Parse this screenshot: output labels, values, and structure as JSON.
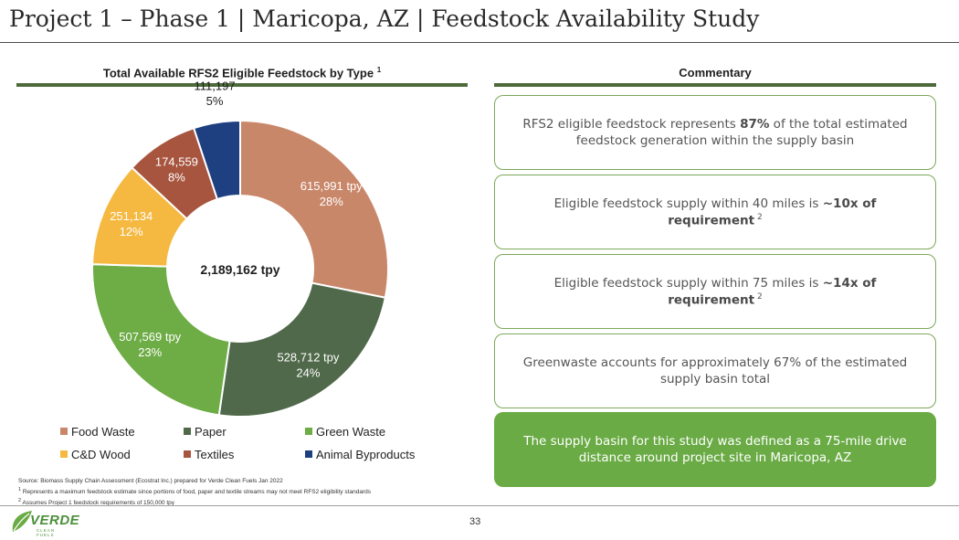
{
  "page": {
    "title": "Project 1 – Phase 1 | Maricopa, AZ | Feedstock Availability Study",
    "page_number": "33"
  },
  "chart_section": {
    "heading": "Total Available RFS2 Eligible Feedstock by Type",
    "heading_sup": "1"
  },
  "commentary": {
    "heading": "Commentary",
    "cards": [
      {
        "pre": "RFS2 eligible feedstock represents ",
        "bold": "87%",
        "post": " of the total estimated feedstock generation within the supply basin",
        "sup": ""
      },
      {
        "pre": "Eligible feedstock supply within 40 miles is ",
        "bold": "~10x of requirement",
        "post": "",
        "sup": "2"
      },
      {
        "pre": "Eligible feedstock supply within 75 miles is ",
        "bold": "~14x of requirement",
        "post": "",
        "sup": "2"
      },
      {
        "pre": "Greenwaste accounts for approximately 67% of the estimated supply basin total",
        "bold": "",
        "post": "",
        "sup": ""
      },
      {
        "pre": "The supply basin for this study was defined as a 75-mile drive distance around project site in Maricopa, AZ",
        "bold": "",
        "post": "",
        "sup": ""
      }
    ]
  },
  "chart_data": {
    "type": "pie",
    "title": "Total Available RFS2 Eligible Feedstock by Type",
    "center_label": "2,189,162 tpy",
    "total": 2189162,
    "series": [
      {
        "name": "Food Waste",
        "value": 615991,
        "label": "615,991 tpy",
        "percent": "28%",
        "color": "#c9876a"
      },
      {
        "name": "Paper",
        "value": 528712,
        "label": "528,712 tpy",
        "percent": "24%",
        "color": "#50694a"
      },
      {
        "name": "Green Waste",
        "value": 507569,
        "label": "507,569 tpy",
        "percent": "23%",
        "color": "#6eac46"
      },
      {
        "name": "C&D Wood",
        "value": 251134,
        "label": "251,134",
        "percent": "12%",
        "color": "#f5b942"
      },
      {
        "name": "Textiles",
        "value": 174559,
        "label": "174,559",
        "percent": "8%",
        "color": "#a7553f"
      },
      {
        "name": "Animal Byproducts",
        "value": 111197,
        "label": "111,197",
        "percent": "5%",
        "color": "#1e3f80"
      }
    ]
  },
  "footnotes": {
    "source": "Source: Biomass Supply Chain Assessment (Ecostrat Inc.) prepared for Verde Clean Fuels Jan 2022",
    "note1_num": "1",
    "note1": "Represents a maximum feedstock estimate since portions of food, paper and textile streams may not meet RFS2 eligibility standards",
    "note2_num": "2",
    "note2": "Assumes Project 1 feedstock requirements of 150,000 tpy"
  },
  "logo": {
    "word": "VERDE",
    "sub": "CLEAN FUELS"
  }
}
